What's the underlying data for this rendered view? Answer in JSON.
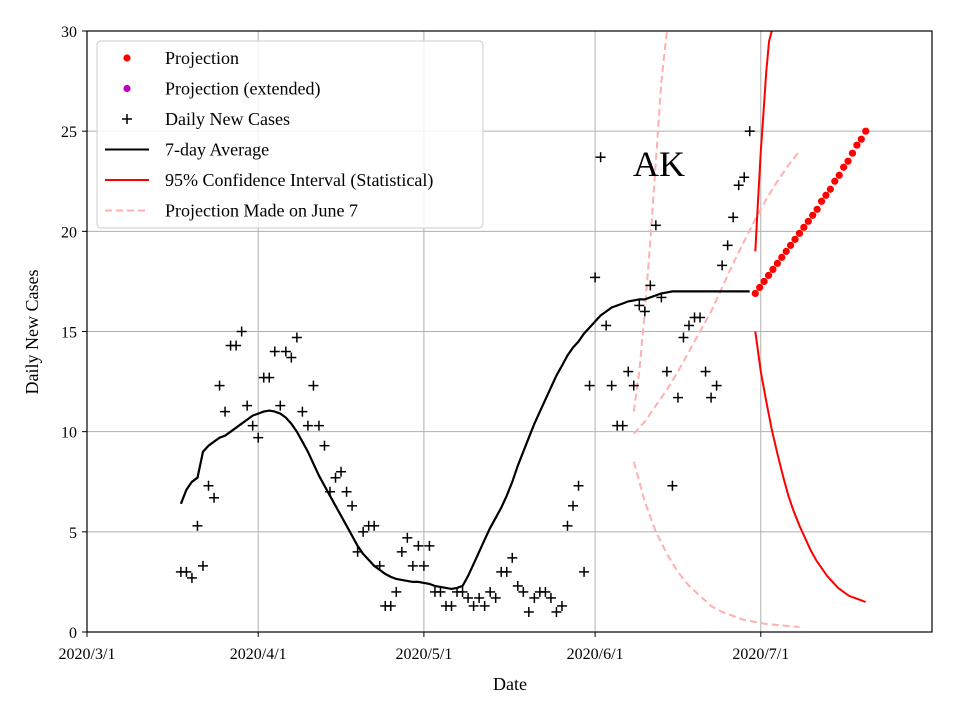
{
  "chart_data": {
    "type": "line",
    "state_label": "AK",
    "xlabel": "Date",
    "ylabel": "Daily New Cases",
    "x_start_day_of_year": 61,
    "xlim": [
      61,
      214
    ],
    "ylim": [
      0,
      30
    ],
    "x_ticks": [
      {
        "day": 61,
        "label": "2020/3/1"
      },
      {
        "day": 92,
        "label": "2020/4/1"
      },
      {
        "day": 122,
        "label": "2020/5/1"
      },
      {
        "day": 153,
        "label": "2020/6/1"
      },
      {
        "day": 183,
        "label": "2020/7/1"
      }
    ],
    "y_ticks": [
      0,
      5,
      10,
      15,
      20,
      25,
      30
    ],
    "grid": true,
    "legend_position": "top-left",
    "legend": [
      {
        "key": "projection",
        "label": "Projection"
      },
      {
        "key": "projection_ext",
        "label": "Projection (extended)"
      },
      {
        "key": "daily",
        "label": "Daily New Cases"
      },
      {
        "key": "avg",
        "label": "7-day Average"
      },
      {
        "key": "ci",
        "label": "95% Confidence Interval (Statistical)"
      },
      {
        "key": "june7",
        "label": "Projection Made on June 7"
      }
    ],
    "colors": {
      "projection": "#ff0000",
      "projection_ext": "#bf00bf",
      "daily": "#000000",
      "avg": "#000000",
      "ci": "#ff0000",
      "june7": "#ffb0b0",
      "grid": "#b0b0b0"
    },
    "series": {
      "daily_new_cases": {
        "x": [
          78,
          79,
          80,
          81,
          82,
          83,
          84,
          85,
          86,
          87,
          88,
          89,
          90,
          91,
          92,
          93,
          94,
          95,
          96,
          97,
          98,
          99,
          100,
          101,
          102,
          103,
          104,
          105,
          106,
          107,
          108,
          109,
          110,
          111,
          112,
          113,
          114,
          115,
          116,
          117,
          118,
          119,
          120,
          121,
          122,
          123,
          124,
          125,
          126,
          127,
          128,
          129,
          130,
          131,
          132,
          133,
          134,
          135,
          136,
          137,
          138,
          139,
          140,
          141,
          142,
          143,
          144,
          145,
          146,
          147,
          148,
          149,
          150,
          151,
          152,
          153,
          154,
          155,
          156,
          157,
          158,
          159,
          160,
          161,
          162,
          163,
          164,
          165,
          166,
          167,
          168,
          169,
          170,
          171,
          172,
          173,
          174,
          175,
          176,
          177,
          178,
          179,
          180,
          181
        ],
        "y": [
          3.0,
          3.0,
          2.7,
          5.3,
          3.3,
          7.3,
          6.7,
          12.3,
          11.0,
          14.3,
          14.3,
          15.0,
          11.3,
          10.3,
          9.7,
          12.7,
          12.7,
          14.0,
          11.3,
          14.0,
          13.7,
          14.7,
          11.0,
          10.3,
          12.3,
          10.3,
          9.3,
          7.0,
          7.7,
          8.0,
          7.0,
          6.3,
          4.0,
          5.0,
          5.3,
          5.3,
          3.3,
          1.3,
          1.3,
          2.0,
          4.0,
          4.7,
          3.3,
          4.3,
          3.3,
          4.3,
          2.0,
          2.0,
          1.3,
          1.3,
          2.0,
          2.0,
          1.7,
          1.3,
          1.7,
          1.3,
          2.0,
          1.7,
          3.0,
          3.0,
          3.7,
          2.3,
          2.0,
          1.0,
          1.7,
          2.0,
          2.0,
          1.7,
          1.0,
          1.3,
          5.3,
          6.3,
          7.3,
          3.0,
          12.3,
          17.7,
          23.7,
          15.3,
          12.3,
          10.3,
          10.3,
          13.0,
          12.3,
          16.3,
          16.0,
          17.3,
          20.3,
          16.7,
          13.0,
          7.3,
          11.7,
          14.7,
          15.3,
          15.7,
          15.7,
          13.0,
          11.7,
          12.3,
          18.3,
          19.3,
          20.7,
          22.3,
          22.7,
          25.0
        ]
      },
      "seven_day_average": {
        "x": [
          78,
          79,
          80,
          81,
          82,
          83,
          84,
          85,
          86,
          87,
          88,
          89,
          90,
          91,
          92,
          93,
          94,
          95,
          96,
          97,
          98,
          99,
          100,
          101,
          102,
          103,
          104,
          105,
          106,
          107,
          108,
          109,
          110,
          111,
          112,
          113,
          114,
          115,
          116,
          117,
          118,
          119,
          120,
          121,
          122,
          123,
          124,
          125,
          126,
          127,
          128,
          129,
          130,
          131,
          132,
          133,
          134,
          135,
          136,
          137,
          138,
          139,
          140,
          141,
          142,
          143,
          144,
          145,
          146,
          147,
          148,
          149,
          150,
          151,
          152,
          153,
          154,
          155,
          156,
          157,
          158,
          159,
          160,
          161,
          162,
          163,
          164,
          165,
          166,
          167,
          168,
          169,
          170,
          171,
          172,
          173,
          174,
          175,
          176,
          177,
          178,
          179,
          180,
          181
        ],
        "y": [
          6.4,
          7.1,
          7.5,
          7.7,
          9.0,
          9.3,
          9.5,
          9.7,
          9.8,
          10.0,
          10.2,
          10.4,
          10.6,
          10.8,
          10.9,
          11.0,
          11.05,
          11.0,
          10.9,
          10.7,
          10.4,
          10.0,
          9.5,
          9.0,
          8.4,
          7.8,
          7.3,
          6.8,
          6.3,
          5.8,
          5.3,
          4.8,
          4.3,
          3.9,
          3.6,
          3.3,
          3.1,
          2.9,
          2.75,
          2.65,
          2.6,
          2.55,
          2.5,
          2.5,
          2.45,
          2.4,
          2.3,
          2.25,
          2.2,
          2.15,
          2.2,
          2.3,
          2.8,
          3.4,
          4.0,
          4.6,
          5.2,
          5.7,
          6.2,
          6.8,
          7.5,
          8.3,
          9.0,
          9.7,
          10.4,
          11.0,
          11.6,
          12.2,
          12.8,
          13.3,
          13.8,
          14.2,
          14.5,
          14.9,
          15.2,
          15.5,
          15.8,
          16.0,
          16.2,
          16.3,
          16.4,
          16.5,
          16.55,
          16.6,
          16.6,
          16.7,
          16.8,
          16.9,
          16.95,
          17.0,
          17.0,
          17.0,
          17.0,
          17.0,
          17.0,
          17.0,
          17.0,
          17.0,
          17.0,
          17.0,
          17.0,
          17.0,
          17.0,
          17.0
        ]
      },
      "projection": {
        "x": [
          182,
          183,
          184,
          185,
          186,
          187,
          188,
          189,
          190,
          191,
          192,
          193,
          194,
          195,
          196,
          197,
          198,
          199,
          200,
          201,
          202
        ],
        "y": [
          17.0,
          17.3,
          17.6,
          17.9,
          18.2,
          18.6,
          18.9,
          19.2,
          19.5,
          19.9,
          20.2,
          20.6,
          21.0,
          21.4,
          21.8,
          22.2,
          22.6,
          23.0,
          23.4,
          23.9,
          24.3
        ]
      },
      "projection_plot": {
        "x": [
          182,
          182.8,
          183.6,
          184.4,
          185.2,
          186,
          186.8,
          187.6,
          188.4,
          189.2,
          190,
          190.8,
          191.6,
          192.4,
          193.2,
          194,
          194.8,
          195.6,
          196.4,
          197.2,
          198,
          198.8,
          199.6,
          200.4,
          201.2,
          202
        ],
        "y": [
          16.9,
          17.2,
          17.5,
          17.8,
          18.1,
          18.4,
          18.7,
          19.0,
          19.3,
          19.6,
          19.9,
          20.2,
          20.5,
          20.8,
          21.1,
          21.5,
          21.8,
          22.1,
          22.5,
          22.8,
          23.2,
          23.5,
          23.9,
          24.3,
          24.6,
          25.0
        ]
      },
      "ci_upper": {
        "x": [
          182,
          182.5,
          183,
          183.5,
          184,
          184.5,
          185
        ],
        "y": [
          19.0,
          21.5,
          24.0,
          26.0,
          28.0,
          29.5,
          30.0
        ]
      },
      "ci_lower": {
        "x": [
          182,
          183,
          184,
          185,
          186,
          187,
          188,
          189,
          190,
          191,
          192,
          193,
          194,
          195,
          196,
          197,
          198,
          199,
          200,
          201,
          202
        ],
        "y": [
          15.0,
          13.0,
          11.5,
          10.1,
          8.9,
          7.8,
          6.8,
          6.0,
          5.3,
          4.7,
          4.1,
          3.6,
          3.2,
          2.8,
          2.5,
          2.2,
          2.0,
          1.8,
          1.7,
          1.6,
          1.5
        ]
      },
      "june7_upper": {
        "x": [
          160,
          161,
          162,
          163,
          164,
          165,
          166
        ],
        "y": [
          11.0,
          13.0,
          16.0,
          19.5,
          23.5,
          27.5,
          30.0
        ]
      },
      "june7_middle": {
        "x": [
          160,
          162,
          164,
          166,
          168,
          170,
          172,
          174,
          176,
          178,
          180,
          182,
          184,
          186,
          188,
          190
        ],
        "y": [
          9.9,
          10.5,
          11.3,
          12.1,
          13.0,
          14.0,
          15.0,
          16.0,
          17.2,
          18.4,
          19.5,
          20.6,
          21.6,
          22.5,
          23.3,
          24.0
        ]
      },
      "june7_lower": {
        "x": [
          160,
          162,
          164,
          166,
          168,
          170,
          172,
          174,
          176,
          178,
          180,
          182,
          184,
          186,
          188,
          190
        ],
        "y": [
          8.5,
          6.5,
          5.0,
          3.9,
          3.0,
          2.3,
          1.8,
          1.3,
          1.0,
          0.8,
          0.6,
          0.5,
          0.4,
          0.35,
          0.3,
          0.25
        ]
      }
    }
  }
}
